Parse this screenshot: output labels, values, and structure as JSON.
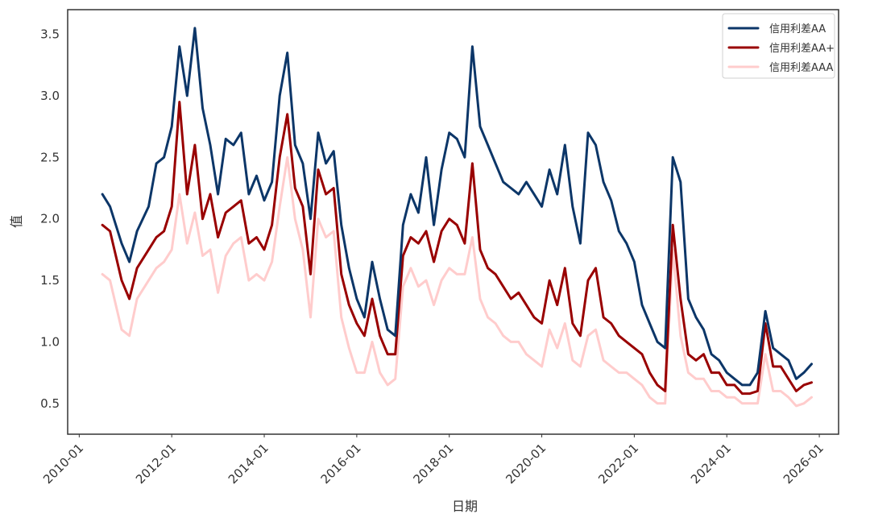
{
  "chart_data": {
    "type": "line",
    "xlabel": "日期",
    "ylabel": "值",
    "x_ticks": [
      "2010-01",
      "2012-01",
      "2014-01",
      "2016-01",
      "2018-01",
      "2020-01",
      "2022-01",
      "2024-01",
      "2026-01"
    ],
    "y_ticks": [
      "0.5",
      "1.0",
      "1.5",
      "2.0",
      "2.5",
      "3.0",
      "3.5"
    ],
    "xlim": [
      "2009-10",
      "2026-06"
    ],
    "ylim": [
      0.25,
      3.7
    ],
    "grid": false,
    "legend_position": "top-right",
    "x": [
      "2010-07",
      "2010-09",
      "2010-12",
      "2011-02",
      "2011-04",
      "2011-07",
      "2011-09",
      "2011-11",
      "2012-01",
      "2012-03",
      "2012-05",
      "2012-07",
      "2012-09",
      "2012-11",
      "2013-01",
      "2013-03",
      "2013-05",
      "2013-07",
      "2013-09",
      "2013-11",
      "2014-01",
      "2014-03",
      "2014-05",
      "2014-07",
      "2014-09",
      "2014-11",
      "2015-01",
      "2015-03",
      "2015-05",
      "2015-07",
      "2015-09",
      "2015-11",
      "2016-01",
      "2016-03",
      "2016-05",
      "2016-07",
      "2016-09",
      "2016-11",
      "2017-01",
      "2017-03",
      "2017-05",
      "2017-07",
      "2017-09",
      "2017-11",
      "2018-01",
      "2018-03",
      "2018-05",
      "2018-07",
      "2018-09",
      "2018-11",
      "2019-01",
      "2019-03",
      "2019-05",
      "2019-07",
      "2019-09",
      "2019-11",
      "2020-01",
      "2020-03",
      "2020-05",
      "2020-07",
      "2020-09",
      "2020-11",
      "2021-01",
      "2021-03",
      "2021-05",
      "2021-07",
      "2021-09",
      "2021-11",
      "2022-01",
      "2022-03",
      "2022-05",
      "2022-07",
      "2022-09",
      "2022-11",
      "2023-01",
      "2023-03",
      "2023-05",
      "2023-07",
      "2023-09",
      "2023-11",
      "2024-01",
      "2024-03",
      "2024-05",
      "2024-07",
      "2024-09",
      "2024-11",
      "2025-01",
      "2025-03",
      "2025-05",
      "2025-07",
      "2025-09",
      "2025-11"
    ],
    "series": [
      {
        "name": "信用利差AA",
        "color": "#0c3668",
        "values": [
          2.2,
          2.1,
          1.8,
          1.65,
          1.9,
          2.1,
          2.45,
          2.5,
          2.75,
          3.4,
          3.0,
          3.55,
          2.9,
          2.6,
          2.2,
          2.65,
          2.6,
          2.7,
          2.2,
          2.35,
          2.15,
          2.3,
          3.0,
          3.35,
          2.6,
          2.45,
          2.0,
          2.7,
          2.45,
          2.55,
          1.95,
          1.6,
          1.35,
          1.2,
          1.65,
          1.35,
          1.1,
          1.05,
          1.95,
          2.2,
          2.05,
          2.5,
          1.95,
          2.4,
          2.7,
          2.65,
          2.5,
          3.4,
          2.75,
          2.6,
          2.45,
          2.3,
          2.25,
          2.2,
          2.3,
          2.2,
          2.1,
          2.4,
          2.2,
          2.6,
          2.1,
          1.8,
          2.7,
          2.6,
          2.3,
          2.15,
          1.9,
          1.8,
          1.65,
          1.3,
          1.15,
          1.0,
          0.95,
          2.5,
          2.3,
          1.35,
          1.2,
          1.1,
          0.9,
          0.85,
          0.75,
          0.7,
          0.65,
          0.65,
          0.75,
          1.25,
          0.95,
          0.9,
          0.85,
          0.7,
          0.75,
          0.82
        ]
      },
      {
        "name": "信用利差AA+",
        "color": "#990000",
        "values": [
          1.95,
          1.9,
          1.5,
          1.35,
          1.6,
          1.75,
          1.85,
          1.9,
          2.1,
          2.95,
          2.2,
          2.6,
          2.0,
          2.2,
          1.85,
          2.05,
          2.1,
          2.15,
          1.8,
          1.85,
          1.75,
          1.95,
          2.5,
          2.85,
          2.25,
          2.1,
          1.55,
          2.4,
          2.2,
          2.25,
          1.55,
          1.3,
          1.15,
          1.05,
          1.35,
          1.05,
          0.9,
          0.9,
          1.7,
          1.85,
          1.8,
          1.9,
          1.65,
          1.9,
          2.0,
          1.95,
          1.8,
          2.45,
          1.75,
          1.6,
          1.55,
          1.45,
          1.35,
          1.4,
          1.3,
          1.2,
          1.15,
          1.5,
          1.3,
          1.6,
          1.15,
          1.05,
          1.5,
          1.6,
          1.2,
          1.15,
          1.05,
          1.0,
          0.95,
          0.9,
          0.75,
          0.65,
          0.6,
          1.95,
          1.35,
          0.9,
          0.85,
          0.9,
          0.75,
          0.75,
          0.65,
          0.65,
          0.58,
          0.58,
          0.6,
          1.15,
          0.8,
          0.8,
          0.7,
          0.6,
          0.65,
          0.67
        ]
      },
      {
        "name": "信用利差AAA",
        "color": "#ffcccc",
        "values": [
          1.55,
          1.5,
          1.1,
          1.05,
          1.35,
          1.5,
          1.6,
          1.65,
          1.75,
          2.2,
          1.8,
          2.05,
          1.7,
          1.75,
          1.4,
          1.7,
          1.8,
          1.85,
          1.5,
          1.55,
          1.5,
          1.65,
          2.1,
          2.5,
          2.0,
          1.75,
          1.2,
          2.0,
          1.85,
          1.9,
          1.2,
          0.95,
          0.75,
          0.75,
          1.0,
          0.75,
          0.65,
          0.7,
          1.45,
          1.6,
          1.45,
          1.5,
          1.3,
          1.5,
          1.6,
          1.55,
          1.55,
          1.85,
          1.35,
          1.2,
          1.15,
          1.05,
          1.0,
          1.0,
          0.9,
          0.85,
          0.8,
          1.1,
          0.95,
          1.15,
          0.85,
          0.8,
          1.05,
          1.1,
          0.85,
          0.8,
          0.75,
          0.75,
          0.7,
          0.65,
          0.55,
          0.5,
          0.5,
          1.75,
          1.05,
          0.75,
          0.7,
          0.7,
          0.6,
          0.6,
          0.55,
          0.55,
          0.5,
          0.5,
          0.5,
          0.9,
          0.6,
          0.6,
          0.55,
          0.48,
          0.5,
          0.55
        ]
      }
    ]
  }
}
